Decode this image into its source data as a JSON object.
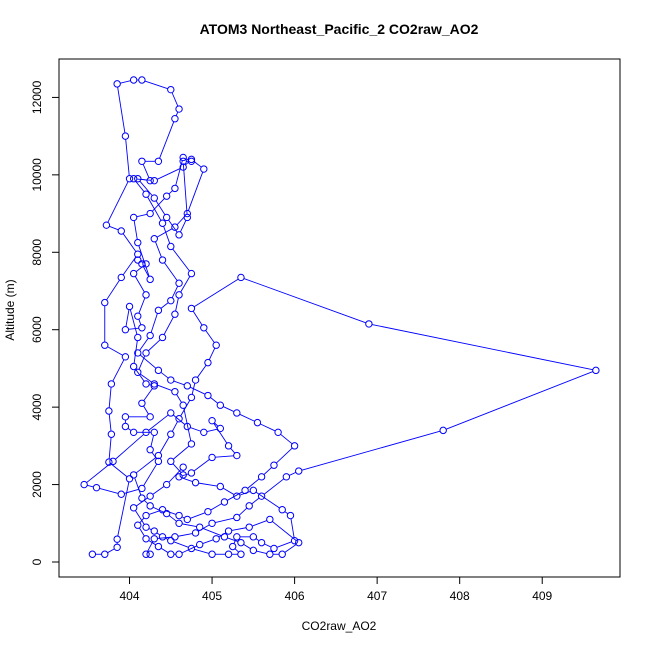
{
  "chart_data": {
    "type": "line",
    "title": "ATOM3 Northeast_Pacific_2 CO2raw_AO2",
    "xlabel": "CO2raw_AO2",
    "ylabel": "Altitude (m)",
    "xlim": [
      403.4,
      409.7
    ],
    "ylim": [
      0,
      12450
    ],
    "xticks": [
      404,
      405,
      406,
      407,
      408,
      409
    ],
    "yticks": [
      0,
      2000,
      4000,
      6000,
      8000,
      10000,
      12000
    ],
    "color": "#0000ff",
    "grid": false,
    "series": [
      {
        "points": [
          [
            403.55,
            200
          ],
          [
            403.7,
            200
          ],
          [
            403.85,
            380
          ],
          [
            403.85,
            590
          ],
          [
            404.0,
            2150
          ],
          [
            403.75,
            2580
          ],
          [
            403.78,
            3300
          ],
          [
            403.75,
            3900
          ],
          [
            403.78,
            4600
          ],
          [
            403.95,
            5300
          ],
          [
            403.7,
            5600
          ],
          [
            403.7,
            6700
          ],
          [
            403.9,
            7350
          ],
          [
            404.1,
            7950
          ],
          [
            403.9,
            8550
          ],
          [
            403.72,
            8700
          ],
          [
            404.0,
            9900
          ],
          [
            403.95,
            11000
          ],
          [
            403.85,
            12350
          ],
          [
            404.05,
            12450
          ],
          [
            404.15,
            12450
          ],
          [
            404.5,
            12200
          ],
          [
            404.6,
            11700
          ],
          [
            404.55,
            11450
          ],
          [
            404.35,
            10350
          ],
          [
            404.15,
            10350
          ],
          [
            404.25,
            9850
          ],
          [
            404.1,
            9900
          ],
          [
            404.3,
            9400
          ],
          [
            404.45,
            8900
          ],
          [
            404.6,
            8450
          ],
          [
            404.7,
            8900
          ],
          [
            404.65,
            10350
          ],
          [
            404.75,
            10350
          ],
          [
            404.65,
            10450
          ],
          [
            404.55,
            9650
          ],
          [
            404.45,
            9450
          ],
          [
            404.25,
            9000
          ],
          [
            404.05,
            8900
          ],
          [
            404.1,
            8250
          ],
          [
            404.25,
            7300
          ],
          [
            404.15,
            7700
          ],
          [
            404.1,
            7800
          ],
          [
            404.2,
            7700
          ],
          [
            404.05,
            7450
          ],
          [
            404.2,
            6900
          ],
          [
            404.1,
            6350
          ],
          [
            404.15,
            6050
          ],
          [
            403.95,
            6000
          ],
          [
            404.0,
            6600
          ],
          [
            404.1,
            5800
          ],
          [
            404.05,
            5050
          ],
          [
            404.2,
            4600
          ],
          [
            404.3,
            4550
          ],
          [
            404.15,
            4100
          ],
          [
            404.25,
            3750
          ],
          [
            403.95,
            3750
          ],
          [
            403.95,
            3500
          ],
          [
            404.05,
            3350
          ],
          [
            404.3,
            3350
          ],
          [
            404.25,
            2900
          ],
          [
            404.35,
            2600
          ],
          [
            404.15,
            1900
          ],
          [
            403.9,
            1750
          ],
          [
            403.6,
            1920
          ],
          [
            403.45,
            2000
          ],
          [
            403.8,
            2600
          ],
          [
            404.2,
            3350
          ],
          [
            404.5,
            3850
          ],
          [
            404.7,
            3500
          ],
          [
            404.9,
            3350
          ],
          [
            405.1,
            3450
          ],
          [
            405.0,
            3650
          ],
          [
            405.2,
            3000
          ],
          [
            405.3,
            2750
          ],
          [
            405.0,
            2700
          ],
          [
            404.75,
            2300
          ],
          [
            404.6,
            2200
          ],
          [
            404.8,
            2050
          ],
          [
            405.1,
            1950
          ],
          [
            405.3,
            1700
          ],
          [
            405.5,
            1850
          ],
          [
            405.85,
            1350
          ],
          [
            405.95,
            1200
          ],
          [
            406.0,
            550
          ],
          [
            405.75,
            350
          ],
          [
            405.6,
            500
          ],
          [
            405.5,
            650
          ],
          [
            405.3,
            650
          ],
          [
            405.25,
            400
          ],
          [
            405.35,
            200
          ],
          [
            405.2,
            200
          ],
          [
            405.0,
            200
          ],
          [
            404.75,
            350
          ],
          [
            404.5,
            550
          ],
          [
            404.4,
            650
          ],
          [
            404.3,
            800
          ],
          [
            404.2,
            900
          ],
          [
            404.05,
            1400
          ],
          [
            404.25,
            1700
          ],
          [
            404.45,
            2000
          ],
          [
            404.65,
            2450
          ],
          [
            404.65,
            2250
          ],
          [
            404.5,
            2600
          ],
          [
            404.75,
            3050
          ],
          [
            404.65,
            4050
          ],
          [
            404.55,
            4400
          ],
          [
            404.3,
            4600
          ],
          [
            404.1,
            4900
          ],
          [
            404.2,
            5400
          ],
          [
            404.4,
            5800
          ],
          [
            404.55,
            6400
          ],
          [
            404.6,
            6900
          ],
          [
            404.75,
            7450
          ],
          [
            404.5,
            8150
          ],
          [
            404.4,
            8750
          ],
          [
            404.2,
            9500
          ],
          [
            404.05,
            9900
          ],
          [
            404.3,
            9850
          ],
          [
            404.65,
            10200
          ],
          [
            404.75,
            10400
          ],
          [
            404.9,
            10150
          ],
          [
            404.7,
            9000
          ],
          [
            404.55,
            8650
          ],
          [
            404.3,
            8350
          ],
          [
            404.4,
            7800
          ],
          [
            404.6,
            7200
          ],
          [
            404.5,
            6750
          ],
          [
            404.35,
            6500
          ],
          [
            404.25,
            5850
          ],
          [
            404.1,
            5400
          ],
          [
            404.35,
            4950
          ],
          [
            404.5,
            4700
          ],
          [
            404.7,
            4550
          ],
          [
            404.95,
            4300
          ],
          [
            405.1,
            4050
          ],
          [
            405.3,
            3850
          ],
          [
            405.55,
            3600
          ],
          [
            405.8,
            3350
          ],
          [
            406.0,
            3000
          ],
          [
            405.75,
            2500
          ],
          [
            405.6,
            2200
          ],
          [
            405.4,
            1850
          ],
          [
            405.15,
            1550
          ],
          [
            404.95,
            1300
          ],
          [
            404.7,
            1100
          ],
          [
            404.6,
            1200
          ],
          [
            404.4,
            1350
          ],
          [
            404.2,
            1200
          ],
          [
            404.1,
            950
          ],
          [
            404.2,
            600
          ],
          [
            404.35,
            400
          ],
          [
            404.5,
            200
          ],
          [
            404.6,
            200
          ],
          [
            404.85,
            450
          ],
          [
            405.05,
            600
          ],
          [
            405.2,
            800
          ],
          [
            405.45,
            900
          ],
          [
            405.7,
            1100
          ],
          [
            406.05,
            500
          ],
          [
            405.85,
            200
          ],
          [
            405.7,
            200
          ],
          [
            405.5,
            300
          ],
          [
            405.35,
            500
          ],
          [
            405.15,
            650
          ],
          [
            404.85,
            900
          ],
          [
            404.6,
            1000
          ],
          [
            404.45,
            1250
          ],
          [
            404.25,
            1450
          ],
          [
            404.15,
            1650
          ],
          [
            404.05,
            2250
          ],
          [
            404.35,
            2750
          ],
          [
            404.5,
            3300
          ],
          [
            404.6,
            3700
          ],
          [
            404.75,
            4250
          ],
          [
            404.8,
            4700
          ],
          [
            404.95,
            5150
          ],
          [
            405.05,
            5600
          ],
          [
            404.9,
            6050
          ],
          [
            404.75,
            6550
          ],
          [
            405.35,
            7350
          ],
          [
            406.9,
            6150
          ],
          [
            409.65,
            4950
          ],
          [
            407.8,
            3400
          ],
          [
            406.05,
            2350
          ],
          [
            405.9,
            2200
          ],
          [
            405.6,
            1700
          ],
          [
            405.45,
            1450
          ],
          [
            405.3,
            1150
          ],
          [
            405.0,
            1000
          ],
          [
            404.8,
            750
          ],
          [
            404.55,
            650
          ],
          [
            404.3,
            600
          ],
          [
            404.2,
            200
          ],
          [
            404.25,
            200
          ]
        ]
      }
    ]
  }
}
